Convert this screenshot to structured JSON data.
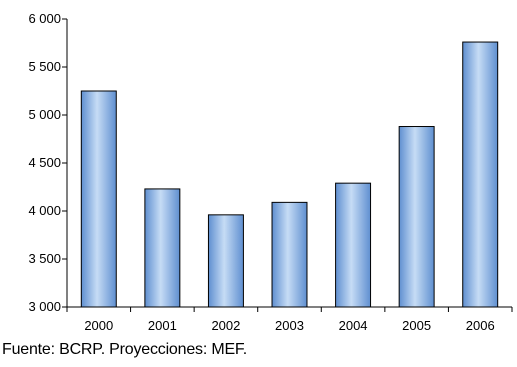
{
  "chart_data": {
    "type": "bar",
    "title": "",
    "xlabel": "",
    "ylabel": "",
    "categories": [
      "2000",
      "2001",
      "2002",
      "2003",
      "2004",
      "2005",
      "2006"
    ],
    "values": [
      5250,
      4230,
      3960,
      4090,
      4290,
      4880,
      5760
    ],
    "ylim": [
      3000,
      6000
    ],
    "yticks": [
      3000,
      3500,
      4000,
      4500,
      5000,
      5500,
      6000
    ],
    "ytick_labels": [
      "3 000",
      "3 500",
      "4 000",
      "4 500",
      "5 000",
      "5 500",
      "6 000"
    ],
    "grid": false,
    "legend": "none",
    "bar_color_light": "#c6dcf5",
    "bar_color_dark": "#5f8fd0",
    "bar_edge_color": "#000000"
  },
  "source_note": "Fuente: BCRP. Proyecciones: MEF."
}
